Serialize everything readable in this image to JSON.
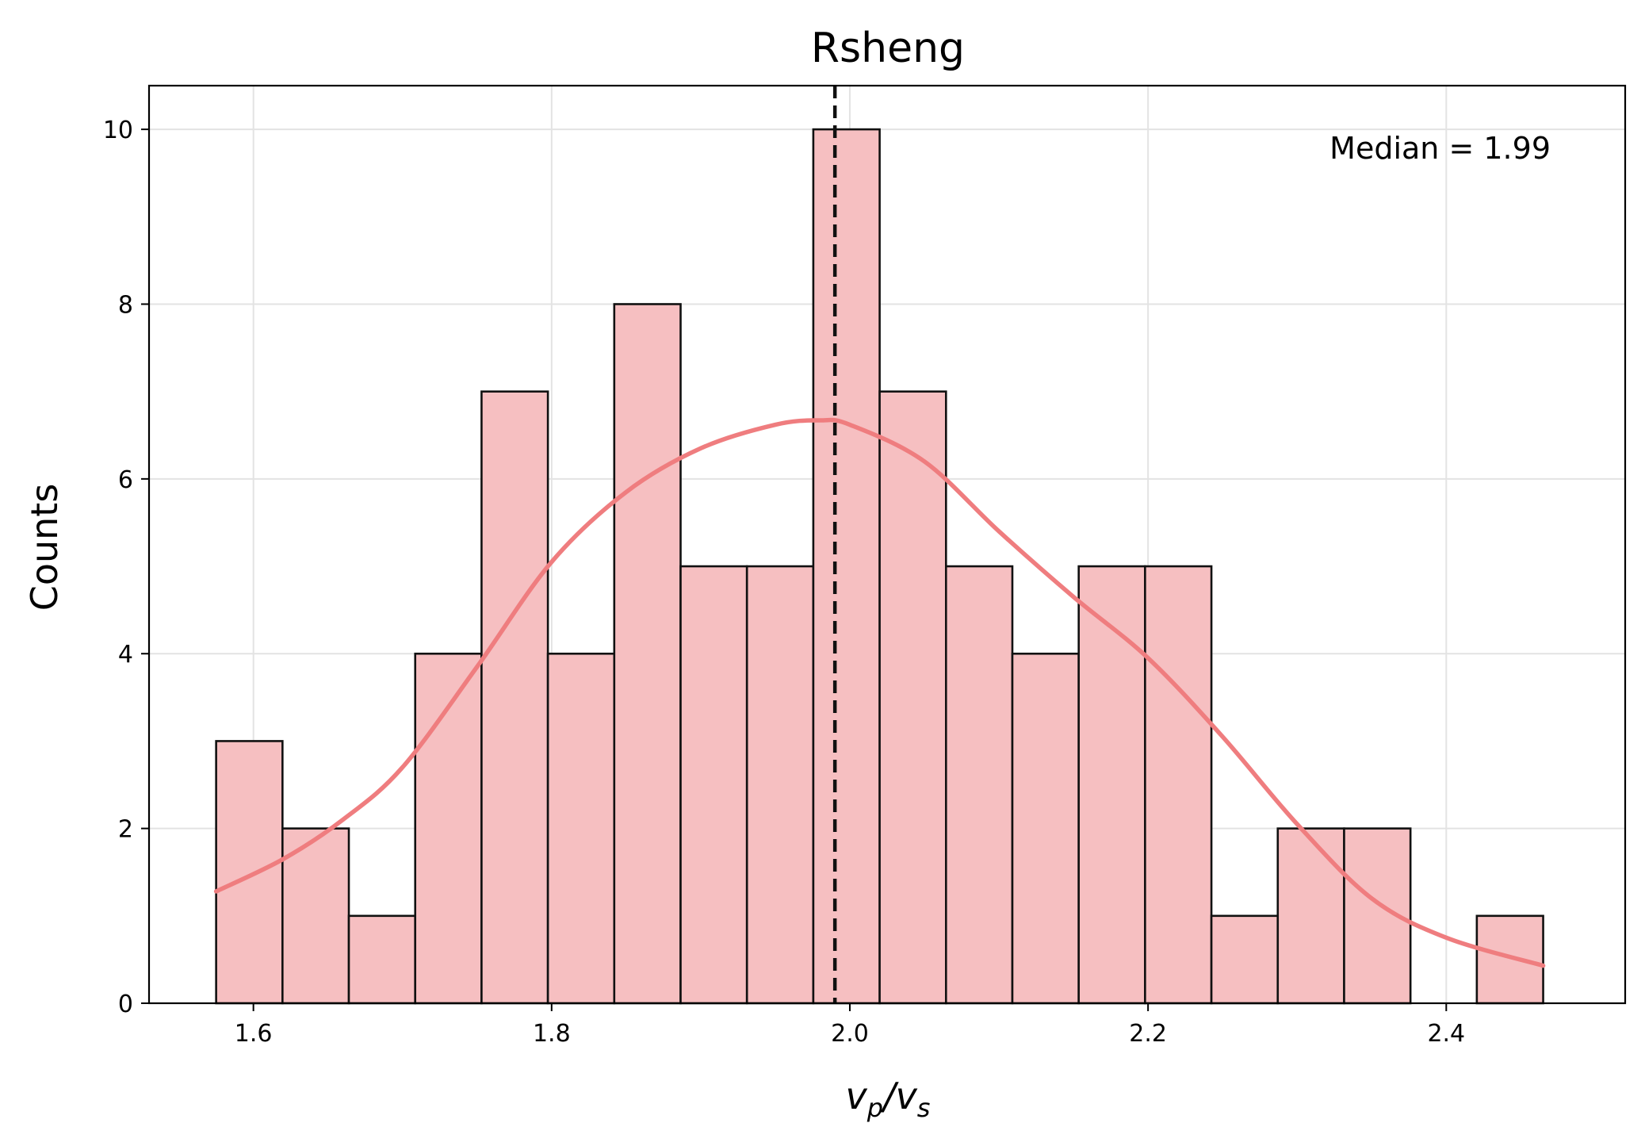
{
  "chart_data": {
    "type": "bar",
    "title": "Rsheng",
    "xlabel": "v_p/v_s",
    "ylabel": "Counts",
    "xlim": [
      1.53,
      2.52
    ],
    "ylim": [
      0,
      10.5
    ],
    "xticks": [
      1.6,
      1.8,
      2.0,
      2.2,
      2.4
    ],
    "xtick_labels": [
      "1.6",
      "1.8",
      "2.0",
      "2.2",
      "2.4"
    ],
    "yticks": [
      0,
      2,
      4,
      6,
      8,
      10
    ],
    "ytick_labels": [
      "0",
      "2",
      "4",
      "6",
      "8",
      "10"
    ],
    "grid": true,
    "bin_edges": [
      1.575,
      1.6195,
      1.664,
      1.7085,
      1.753,
      1.7975,
      1.842,
      1.8865,
      1.931,
      1.9755,
      2.02,
      2.0645,
      2.109,
      2.1535,
      2.198,
      2.2425,
      2.287,
      2.3315,
      2.376,
      2.4205,
      2.465
    ],
    "counts": [
      3,
      2,
      1,
      4,
      7,
      4,
      8,
      5,
      5,
      10,
      7,
      5,
      4,
      5,
      5,
      1,
      2,
      2,
      0,
      1
    ],
    "kde": {
      "x": [
        1.575,
        1.62,
        1.66,
        1.7,
        1.75,
        1.8,
        1.85,
        1.9,
        1.95,
        1.98,
        2.0,
        2.05,
        2.1,
        2.15,
        2.2,
        2.25,
        2.3,
        2.35,
        2.4,
        2.465
      ],
      "y": [
        1.28,
        1.65,
        2.1,
        2.7,
        3.85,
        5.05,
        5.85,
        6.35,
        6.62,
        6.67,
        6.62,
        6.2,
        5.4,
        4.65,
        3.95,
        3.05,
        2.05,
        1.2,
        0.75,
        0.43
      ]
    },
    "median": 1.99,
    "annotation": "Median = 1.99",
    "colors": {
      "bar_fill": "#f6bfc1",
      "bar_edge": "#111111",
      "kde_line": "#ef7d7f",
      "median_line": "#111111",
      "grid": "#e3e3e3"
    }
  }
}
